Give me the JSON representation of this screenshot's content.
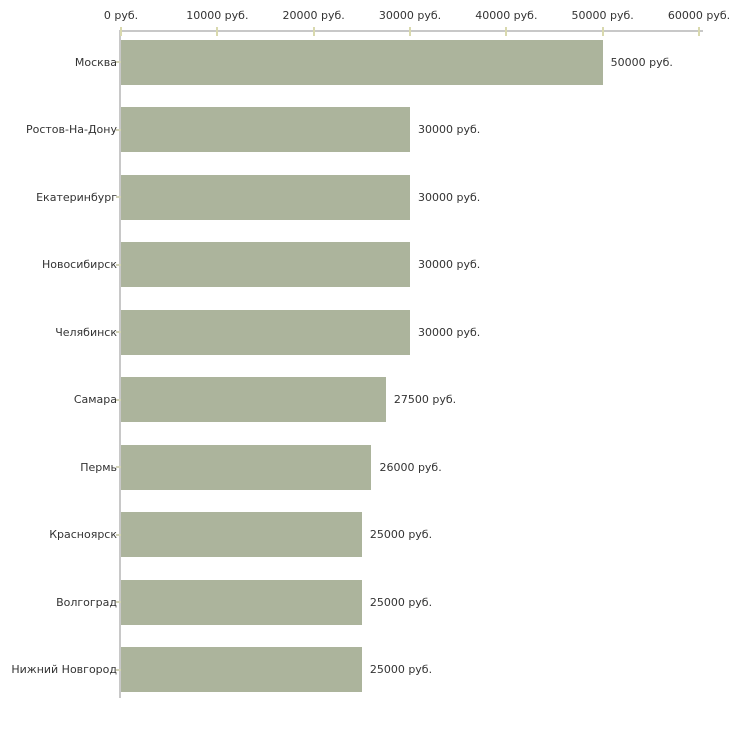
{
  "chart_data": {
    "type": "bar",
    "orientation": "horizontal",
    "title": "",
    "xlabel": "",
    "ylabel": "",
    "unit": "руб.",
    "categories": [
      "Москва",
      "Ростов-На-Дону",
      "Екатеринбург",
      "Новосибирск",
      "Челябинск",
      "Самара",
      "Пермь",
      "Красноярск",
      "Волгоград",
      "Нижний Новгород"
    ],
    "values": [
      50000,
      30000,
      30000,
      30000,
      30000,
      27500,
      26000,
      25000,
      25000,
      25000
    ],
    "value_labels": [
      "50000 руб.",
      "30000 руб.",
      "30000 руб.",
      "30000 руб.",
      "30000 руб.",
      "27500 руб.",
      "26000 руб.",
      "25000 руб.",
      "25000 руб.",
      "25000 руб."
    ],
    "x_axis": {
      "position": "top",
      "range": [
        0,
        60000
      ],
      "tick_values": [
        0,
        10000,
        20000,
        30000,
        40000,
        50000,
        60000
      ],
      "tick_labels": [
        "0 руб.",
        "10000 руб.",
        "20000 руб.",
        "30000 руб.",
        "40000 руб.",
        "50000 руб.",
        "60000 руб."
      ]
    },
    "legend": "none",
    "grid": "off",
    "colors": {
      "bar": "#acb49c",
      "axis_line": "#c8c8c8",
      "axis_tick": "#d9d9ae",
      "category_tick": "#d2d2b8",
      "text": "#333333",
      "background": "#ffffff"
    }
  }
}
